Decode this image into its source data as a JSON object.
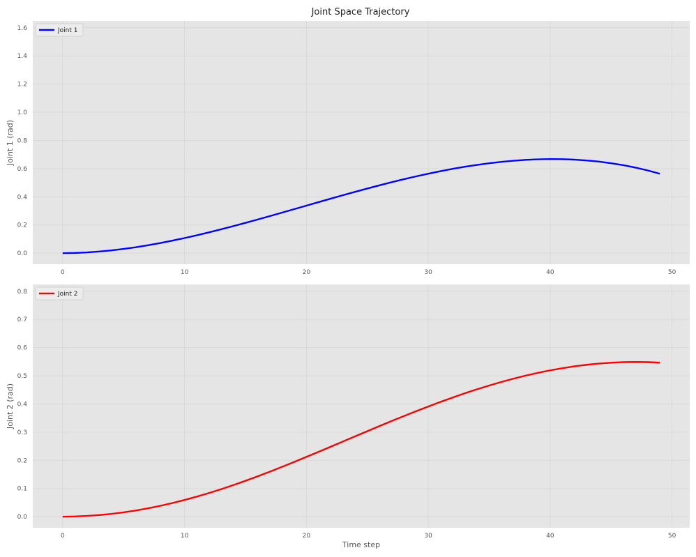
{
  "figure": {
    "title": "Joint Space Trajectory"
  },
  "chart_data": [
    {
      "type": "line",
      "title": "Joint Space Trajectory",
      "xlabel": "",
      "ylabel": "Joint 1 (rad)",
      "xlim": [
        -2.45,
        51.45
      ],
      "ylim": [
        -0.0785,
        1.6485
      ],
      "xticks": [
        0,
        10,
        20,
        30,
        40,
        50
      ],
      "yticks": [
        0.0,
        0.2,
        0.4,
        0.6,
        0.8,
        1.0,
        1.2,
        1.4,
        1.6
      ],
      "ytick_labels": [
        "0.0",
        "0.2",
        "0.4",
        "0.6",
        "0.8",
        "1.0",
        "1.2",
        "1.4",
        "1.6"
      ],
      "grid": true,
      "legend": "top-left",
      "series": [
        {
          "name": "Joint 1",
          "color": "#0000ff",
          "x": [
            0,
            1,
            2,
            3,
            4,
            5,
            6,
            7,
            8,
            9,
            10,
            11,
            12,
            13,
            14,
            15,
            16,
            17,
            18,
            19,
            20,
            21,
            22,
            23,
            24,
            25,
            26,
            27,
            28,
            29,
            30,
            31,
            32,
            33,
            34,
            35,
            36,
            37,
            38,
            39,
            40,
            41,
            42,
            43,
            44,
            45,
            46,
            47,
            48,
            49
          ],
          "y": [
            0.0,
            0.0013,
            0.0052,
            0.0113,
            0.0196,
            0.0299,
            0.0421,
            0.0561,
            0.0716,
            0.0887,
            0.1071,
            0.1267,
            0.1474,
            0.1691,
            0.1917,
            0.2149,
            0.2387,
            0.263,
            0.2876,
            0.3124,
            0.3373,
            0.3622,
            0.3869,
            0.4113,
            0.4353,
            0.4588,
            0.4816,
            0.5037,
            0.5248,
            0.545,
            0.564,
            0.5818,
            0.5983,
            0.6132,
            0.6266,
            0.6383,
            0.6482,
            0.6562,
            0.6622,
            0.666,
            0.6676,
            0.6669,
            0.6637,
            0.658,
            0.6496,
            0.6384,
            0.6243,
            0.6072,
            0.587,
            0.5636
          ]
        }
      ]
    },
    {
      "type": "line",
      "title": "",
      "xlabel": "Time step",
      "ylabel": "Joint 2 (rad)",
      "xlim": [
        -2.45,
        51.45
      ],
      "ylim": [
        -0.03925,
        0.82425
      ],
      "xticks": [
        0,
        10,
        20,
        30,
        40,
        50
      ],
      "yticks": [
        0.0,
        0.1,
        0.2,
        0.3,
        0.4,
        0.5,
        0.6,
        0.7,
        0.8
      ],
      "ytick_labels": [
        "0.0",
        "0.1",
        "0.2",
        "0.3",
        "0.4",
        "0.5",
        "0.6",
        "0.7",
        "0.8"
      ],
      "grid": true,
      "legend": "top-left",
      "series": [
        {
          "name": "Joint 2",
          "color": "#ff0000",
          "x": [
            0,
            1,
            2,
            3,
            4,
            5,
            6,
            7,
            8,
            9,
            10,
            11,
            12,
            13,
            14,
            15,
            16,
            17,
            18,
            19,
            20,
            21,
            22,
            23,
            24,
            25,
            26,
            27,
            28,
            29,
            30,
            31,
            32,
            33,
            34,
            35,
            36,
            37,
            38,
            39,
            40,
            41,
            42,
            43,
            44,
            45,
            46,
            47,
            48,
            49
          ],
          "y": [
            0.0,
            0.0007,
            0.0026,
            0.0057,
            0.0099,
            0.0153,
            0.0219,
            0.0296,
            0.0384,
            0.0483,
            0.0592,
            0.071,
            0.0838,
            0.0975,
            0.112,
            0.1273,
            0.1432,
            0.1597,
            0.1768,
            0.1942,
            0.2121,
            0.2302,
            0.2484,
            0.2668,
            0.2852,
            0.3034,
            0.3216,
            0.3395,
            0.3571,
            0.3743,
            0.391,
            0.4073,
            0.4229,
            0.4379,
            0.4521,
            0.4656,
            0.4782,
            0.4899,
            0.5007,
            0.5105,
            0.5193,
            0.527,
            0.5336,
            0.5391,
            0.5434,
            0.5465,
            0.5484,
            0.549,
            0.5484,
            0.5465
          ]
        }
      ]
    }
  ]
}
